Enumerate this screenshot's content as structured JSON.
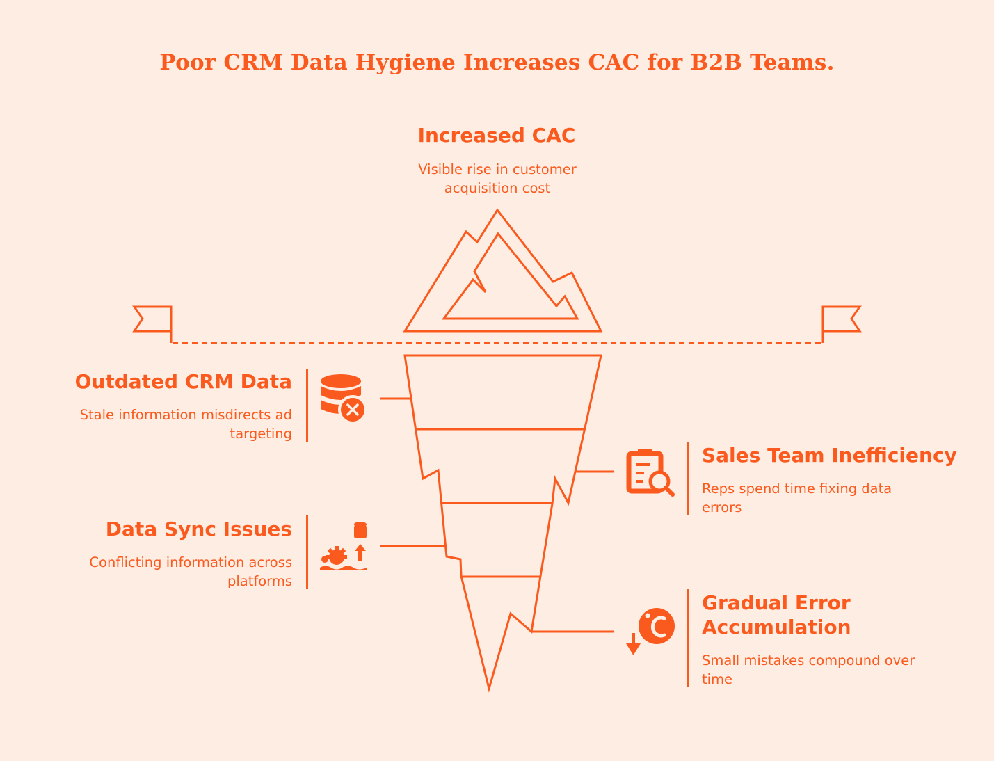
{
  "title": "Poor CRM Data Hygiene Increases CAC for B2B Teams.",
  "tip": {
    "heading": "Increased CAC",
    "description": "Visible rise in customer acquisition cost"
  },
  "layers": [
    {
      "heading": "Outdated CRM Data",
      "description": "Stale information misdirects ad targeting",
      "icon": "database-error-icon",
      "side": "left"
    },
    {
      "heading": "Sales Team Inefficiency",
      "description": "Reps spend time fixing data errors",
      "icon": "clipboard-search-icon",
      "side": "right"
    },
    {
      "heading": "Data Sync Issues",
      "description": "Conflicting information across platforms",
      "icon": "gear-sync-database-icon",
      "side": "left"
    },
    {
      "heading": "Gradual Error Accumulation",
      "description": "Small mistakes compound over time",
      "icon": "error-decrease-icon",
      "side": "right"
    }
  ],
  "colors": {
    "accent": "#fb5a1e",
    "background": "#fdede3"
  }
}
